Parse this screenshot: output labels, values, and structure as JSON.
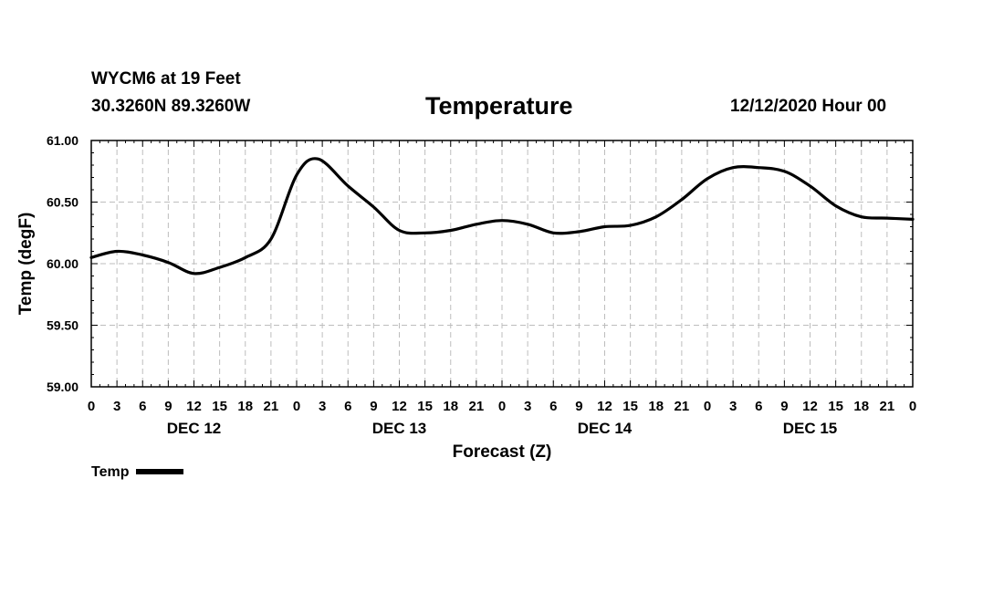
{
  "header": {
    "station": "WYCM6 at 19 Feet",
    "coords": "30.3260N 89.3260W",
    "title": "Temperature",
    "date": "12/12/2020 Hour 00"
  },
  "chart_data": {
    "type": "line",
    "title": "Temperature",
    "xlabel": "Forecast (Z)",
    "ylabel": "Temp (degF)",
    "ylim": [
      59.0,
      61.0
    ],
    "yticks": [
      "59.00",
      "59.50",
      "60.00",
      "60.50",
      "61.00"
    ],
    "xlim_hours": [
      0,
      96
    ],
    "xtick_labels": [
      "0",
      "3",
      "6",
      "9",
      "12",
      "15",
      "18",
      "21",
      "0",
      "3",
      "6",
      "9",
      "12",
      "15",
      "18",
      "21",
      "0",
      "3",
      "6",
      "9",
      "12",
      "15",
      "18",
      "21",
      "0",
      "3",
      "6",
      "9",
      "12",
      "15",
      "18",
      "21",
      "0"
    ],
    "day_labels": [
      "DEC 12",
      "DEC 13",
      "DEC 14",
      "DEC 15"
    ],
    "grid": true,
    "legend_position": "bottom-left",
    "color": "#000000",
    "series": [
      {
        "name": "Temp",
        "x": [
          0,
          3,
          6,
          9,
          12,
          15,
          18,
          21,
          24,
          26.5,
          30,
          33,
          36,
          39,
          42,
          45,
          48,
          51,
          54,
          57,
          60,
          63,
          66,
          69,
          72,
          75,
          78,
          81,
          84,
          87,
          90,
          93,
          96
        ],
        "y": [
          60.05,
          60.1,
          60.07,
          60.01,
          59.92,
          59.97,
          60.05,
          60.2,
          60.72,
          60.85,
          60.63,
          60.46,
          60.27,
          60.25,
          60.27,
          60.32,
          60.35,
          60.32,
          60.25,
          60.26,
          60.3,
          60.31,
          60.38,
          60.52,
          60.69,
          60.78,
          60.78,
          60.75,
          60.63,
          60.47,
          60.38,
          60.37,
          60.36
        ]
      }
    ]
  }
}
